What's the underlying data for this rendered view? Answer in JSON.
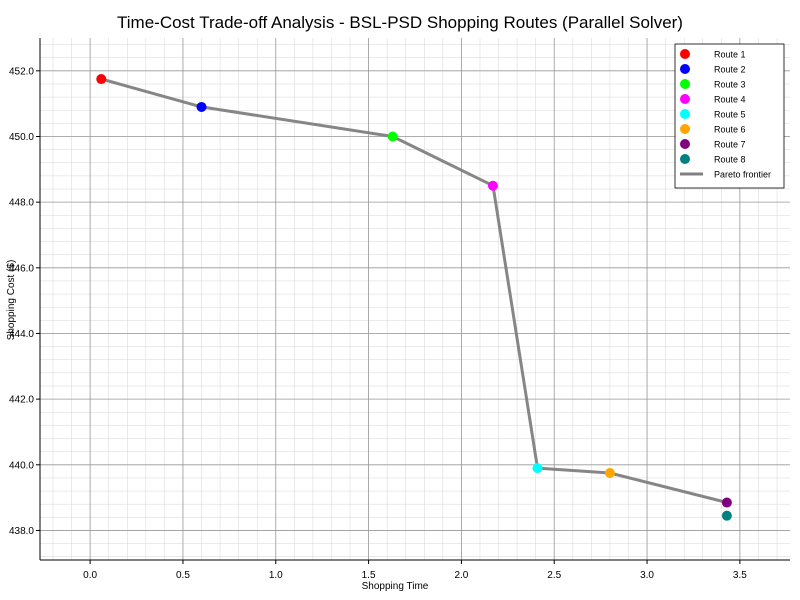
{
  "chart_data": {
    "type": "scatter",
    "title": "Time-Cost Trade-off Analysis - BSL-PSD Shopping Routes (Parallel Solver)",
    "xlabel": "Shopping Time",
    "ylabel": "Shopping Cost ($)",
    "xlim": [
      -0.27,
      3.77
    ],
    "ylim": [
      437.1,
      453.0
    ],
    "xticks": [
      0.0,
      0.5,
      1.0,
      1.5,
      2.0,
      2.5,
      3.0,
      3.5
    ],
    "xtick_labels": [
      "0.0",
      "0.5",
      "1.0",
      "1.5",
      "2.0",
      "2.5",
      "3.0",
      "3.5"
    ],
    "yticks": [
      438.0,
      440.0,
      442.0,
      444.0,
      446.0,
      448.0,
      450.0,
      452.0
    ],
    "ytick_labels": [
      "438.0",
      "440.0",
      "442.0",
      "444.0",
      "446.0",
      "448.0",
      "450.0",
      "452.0"
    ],
    "grid": true,
    "legend_position": "top-right",
    "series": [
      {
        "name": "Route 1",
        "color": "#ff0000",
        "x": 0.06,
        "y": 451.75
      },
      {
        "name": "Route 2",
        "color": "#0000ff",
        "x": 0.6,
        "y": 450.9
      },
      {
        "name": "Route 3",
        "color": "#00ff00",
        "x": 1.63,
        "y": 450.0
      },
      {
        "name": "Route 4",
        "color": "#ff00ff",
        "x": 2.17,
        "y": 448.5
      },
      {
        "name": "Route 5",
        "color": "#00ffff",
        "x": 2.41,
        "y": 439.9
      },
      {
        "name": "Route 6",
        "color": "#ffa500",
        "x": 2.8,
        "y": 439.75
      },
      {
        "name": "Route 7",
        "color": "#800080",
        "x": 3.43,
        "y": 438.85
      },
      {
        "name": "Route 8",
        "color": "#008080",
        "x": 3.43,
        "y": 438.45
      }
    ],
    "pareto_frontier": {
      "name": "Pareto frontier",
      "color": "#808080",
      "x": [
        0.06,
        0.6,
        1.63,
        2.17,
        2.41,
        2.8,
        3.43
      ],
      "y": [
        451.75,
        450.9,
        450.0,
        448.5,
        439.9,
        439.75,
        438.85
      ]
    }
  }
}
